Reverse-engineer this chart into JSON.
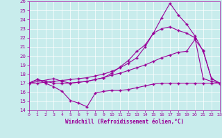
{
  "background_color": "#c8ecec",
  "line_color": "#990099",
  "xlabel": "Windchill (Refroidissement éolien,°C)",
  "xlim": [
    0,
    23
  ],
  "ylim": [
    14,
    26
  ],
  "xticks": [
    0,
    1,
    2,
    3,
    4,
    5,
    6,
    7,
    8,
    9,
    10,
    11,
    12,
    13,
    14,
    15,
    16,
    17,
    18,
    19,
    20,
    21,
    22,
    23
  ],
  "yticks": [
    14,
    15,
    16,
    17,
    18,
    19,
    20,
    21,
    22,
    23,
    24,
    25,
    26
  ],
  "line1_x": [
    0,
    1,
    2,
    3,
    4,
    5,
    6,
    7,
    8,
    9,
    10,
    11,
    12,
    13,
    14,
    15,
    16,
    17,
    18,
    19,
    20,
    21,
    22,
    23
  ],
  "line1_y": [
    17.0,
    17.4,
    17.0,
    16.6,
    16.1,
    15.1,
    14.8,
    14.4,
    15.9,
    16.1,
    16.2,
    16.2,
    16.3,
    16.5,
    16.7,
    16.9,
    17.0,
    17.0,
    17.0,
    17.0,
    17.0,
    17.0,
    17.0,
    17.0
  ],
  "line2_x": [
    0,
    1,
    2,
    3,
    4,
    5,
    6,
    7,
    8,
    9,
    10,
    11,
    12,
    13,
    14,
    15,
    16,
    17,
    18,
    19,
    20,
    21,
    22,
    23
  ],
  "line2_y": [
    17.0,
    17.4,
    17.2,
    17.0,
    17.0,
    17.0,
    17.1,
    17.2,
    17.4,
    17.6,
    17.9,
    18.1,
    18.4,
    18.7,
    19.0,
    19.4,
    19.8,
    20.1,
    20.4,
    20.5,
    21.8,
    20.6,
    17.5,
    17.0
  ],
  "line3_x": [
    0,
    1,
    2,
    3,
    4,
    5,
    6,
    7,
    8,
    9,
    10,
    11,
    12,
    13,
    14,
    15,
    16,
    17,
    18,
    19,
    20,
    21,
    22,
    23
  ],
  "line3_y": [
    17.0,
    17.0,
    17.1,
    17.2,
    17.3,
    17.4,
    17.5,
    17.6,
    17.8,
    18.0,
    18.3,
    18.7,
    19.2,
    19.8,
    21.0,
    22.5,
    23.0,
    23.2,
    22.8,
    22.5,
    22.0,
    17.5,
    17.2,
    17.0
  ],
  "line4_x": [
    0,
    3,
    4,
    5,
    6,
    7,
    8,
    9,
    10,
    11,
    12,
    13,
    14,
    15,
    16,
    17,
    18,
    19,
    20,
    21,
    22,
    23
  ],
  "line4_y": [
    17.0,
    17.5,
    17.2,
    17.0,
    17.1,
    17.2,
    17.4,
    17.6,
    18.1,
    18.8,
    19.5,
    20.5,
    21.2,
    22.5,
    24.2,
    25.8,
    24.5,
    23.5,
    22.2,
    20.5,
    17.5,
    17.0
  ]
}
